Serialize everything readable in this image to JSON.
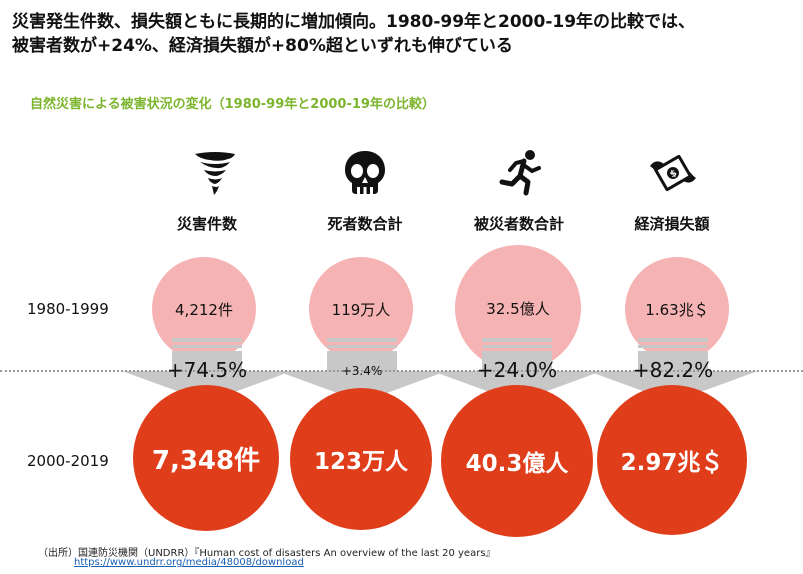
{
  "headline": {
    "line1": "災害発生件数、損失額ともに長期的に増加傾向。1980-99年と2000-19年の比較では、",
    "line2": "被害者数が+24%、経済損失額が+80%超といずれも伸びている"
  },
  "subtitle": "自然災害による被害状況の変化（1980-99年と2000-19年の比較）",
  "row_labels": {
    "old": "1980-1999",
    "new": "2000-2019"
  },
  "colors": {
    "accent_green": "#7cb52d",
    "old_bubble": "#f6b3b3",
    "new_bubble": "#e03d1b",
    "arrow": "#c8c8c8"
  },
  "categories": [
    {
      "label": "災害件数",
      "icon": "tornado-icon",
      "old": "4,212件",
      "change": "+74.5%",
      "new": "7,348件"
    },
    {
      "label": "死者数合計",
      "icon": "skull-icon",
      "old": "119万人",
      "change": "+3.4%",
      "new": "123万人"
    },
    {
      "label": "被災者数合計",
      "icon": "running-person-icon",
      "old": "32.5億人",
      "change": "+24.0%",
      "new": "40.3億人"
    },
    {
      "label": "経済損失額",
      "icon": "flying-money-icon",
      "old": "1.63兆＄",
      "change": "+82.2%",
      "new": "2.97兆＄"
    }
  ],
  "source": {
    "text": "（出所）国連防災機関（UNDRR）『Human cost of disasters An overview of the last 20 years』",
    "url": "https://www.undrr.org/media/48008/download"
  },
  "chart_data": {
    "type": "bubble-comparison",
    "title": "自然災害による被害状況の変化（1980-99年と2000-19年の比較）",
    "categories": [
      "災害件数",
      "死者数合計",
      "被災者数合計",
      "経済損失額"
    ],
    "series": [
      {
        "name": "1980-1999",
        "values": [
          4212,
          1190000,
          3250000000,
          1.63
        ],
        "labels": [
          "4,212件",
          "119万人",
          "32.5億人",
          "1.63兆＄"
        ]
      },
      {
        "name": "2000-2019",
        "values": [
          7348,
          1230000,
          4030000000,
          2.97
        ],
        "labels": [
          "7,348件",
          "123万人",
          "40.3億人",
          "2.97兆＄"
        ]
      }
    ],
    "change_pct": [
      74.5,
      3.4,
      24.0,
      82.2
    ]
  }
}
